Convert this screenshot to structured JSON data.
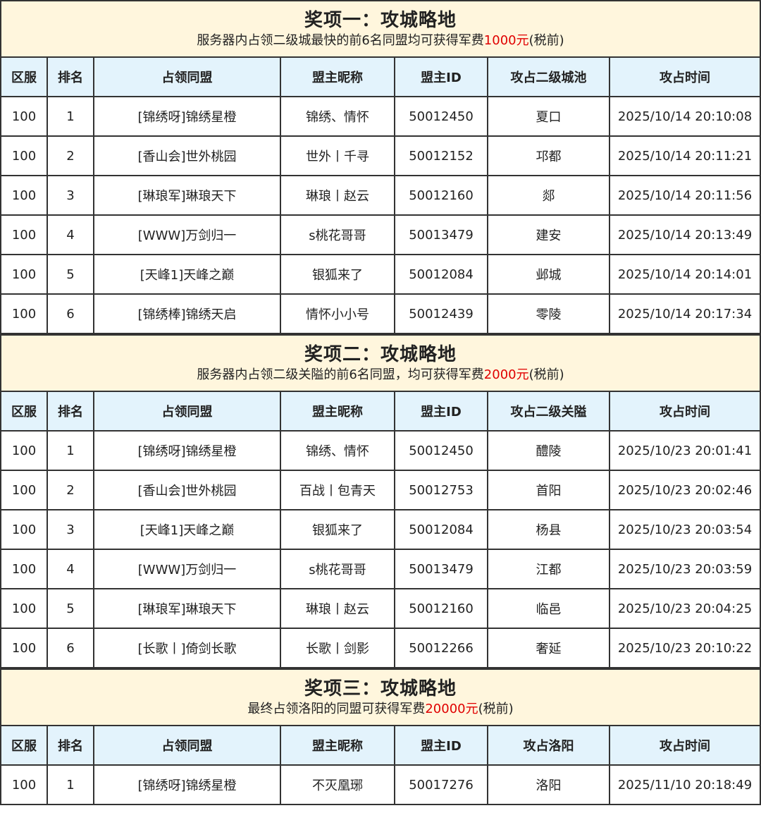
{
  "colors": {
    "banner_bg": "#fff6dd",
    "header_bg": "#e3f3fc",
    "highlight": "#e00000"
  },
  "sections": [
    {
      "title": "奖项一：攻城略地",
      "subtitle_pre": "服务器内占领二级城最快的前6名同盟均可获得军费",
      "subtitle_amount": "1000元",
      "subtitle_post": "(税前)",
      "headers": [
        "区服",
        "排名",
        "占领同盟",
        "盟主昵称",
        "盟主ID",
        "攻占二级城池",
        "攻占时间"
      ],
      "rows": [
        [
          "100",
          "1",
          "[锦绣呀]锦绣星橙",
          "锦绣、情怀",
          "50012450",
          "夏口",
          "2025/10/14 20:10:08"
        ],
        [
          "100",
          "2",
          "[香山会]世外桃园",
          "世外丨千寻",
          "50012152",
          "邛都",
          "2025/10/14 20:11:21"
        ],
        [
          "100",
          "3",
          "[琳琅军]琳琅天下",
          "琳琅丨赵云",
          "50012160",
          "郯",
          "2025/10/14 20:11:56"
        ],
        [
          "100",
          "4",
          "[WWW]万剑归一",
          "s桃花哥哥",
          "50013479",
          "建安",
          "2025/10/14 20:13:49"
        ],
        [
          "100",
          "5",
          "[天峰1]天峰之巅",
          "银狐来了",
          "50012084",
          "邺城",
          "2025/10/14 20:14:01"
        ],
        [
          "100",
          "6",
          "[锦绣棒]锦绣天启",
          "情怀小小号",
          "50012439",
          "零陵",
          "2025/10/14 20:17:34"
        ]
      ]
    },
    {
      "title": "奖项二：攻城略地",
      "subtitle_pre": "服务器内占领二级关隘的前6名同盟，均可获得军费",
      "subtitle_amount": "2000元",
      "subtitle_post": "(税前)",
      "headers": [
        "区服",
        "排名",
        "占领同盟",
        "盟主昵称",
        "盟主ID",
        "攻占二级关隘",
        "攻占时间"
      ],
      "rows": [
        [
          "100",
          "1",
          "[锦绣呀]锦绣星橙",
          "锦绣、情怀",
          "50012450",
          "醴陵",
          "2025/10/23 20:01:41"
        ],
        [
          "100",
          "2",
          "[香山会]世外桃园",
          "百战丨包青天",
          "50012753",
          "首阳",
          "2025/10/23 20:02:46"
        ],
        [
          "100",
          "3",
          "[天峰1]天峰之巅",
          "银狐来了",
          "50012084",
          "杨县",
          "2025/10/23 20:03:54"
        ],
        [
          "100",
          "4",
          "[WWW]万剑归一",
          "s桃花哥哥",
          "50013479",
          "江都",
          "2025/10/23 20:03:59"
        ],
        [
          "100",
          "5",
          "[琳琅军]琳琅天下",
          "琳琅丨赵云",
          "50012160",
          "临邑",
          "2025/10/23 20:04:25"
        ],
        [
          "100",
          "6",
          "[长歌丨]倚剑长歌",
          "长歌丨剑影",
          "50012266",
          "奢延",
          "2025/10/23 20:10:22"
        ]
      ]
    },
    {
      "title": "奖项三：攻城略地",
      "subtitle_pre": "最终占领洛阳的同盟可获得军费",
      "subtitle_amount": "20000元",
      "subtitle_post": "(税前)",
      "headers": [
        "区服",
        "排名",
        "占领同盟",
        "盟主昵称",
        "盟主ID",
        "攻占洛阳",
        "攻占时间"
      ],
      "rows": [
        [
          "100",
          "1",
          "[锦绣呀]锦绣星橙",
          "不灭凰琊",
          "50017276",
          "洛阳",
          "2025/11/10 20:18:49"
        ]
      ]
    }
  ]
}
